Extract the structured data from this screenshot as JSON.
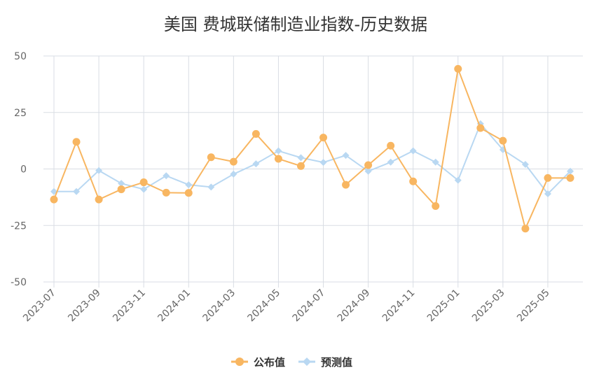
{
  "colors": {
    "actual": "#f8b661",
    "forecast": "#b9d8f2",
    "grid": "#d9dde4"
  },
  "chart_data": {
    "type": "line",
    "title": "美国 费城联储制造业指数-历史数据",
    "x": [
      "2023-07",
      "2023-08",
      "2023-09",
      "2023-10",
      "2023-11",
      "2023-12",
      "2024-01",
      "2024-02",
      "2024-03",
      "2024-04",
      "2024-05",
      "2024-06",
      "2024-07",
      "2024-08",
      "2024-09",
      "2024-10",
      "2024-11",
      "2024-12",
      "2025-01",
      "2025-02",
      "2025-03",
      "2025-04",
      "2025-05",
      "2025-06"
    ],
    "x_tick_labels": [
      "2023-07",
      "2023-09",
      "2023-11",
      "2024-01",
      "2024-03",
      "2024-05",
      "2024-07",
      "2024-09",
      "2024-11",
      "2025-01",
      "2025-03",
      "2025-05"
    ],
    "y_tick_labels": [
      "50",
      "25",
      "0",
      "-25",
      "-50"
    ],
    "ylim": [
      -50,
      50
    ],
    "grid": true,
    "legend_position": "bottom-center",
    "series": [
      {
        "name": "公布值",
        "marker": "circle",
        "values": [
          -13.5,
          12.0,
          -13.5,
          -9.0,
          -5.9,
          -10.5,
          -10.6,
          5.2,
          3.2,
          15.5,
          4.5,
          1.3,
          13.9,
          -7.0,
          1.7,
          10.3,
          -5.5,
          -16.4,
          44.3,
          18.1,
          12.5,
          -26.4,
          -4.0,
          -4.0
        ]
      },
      {
        "name": "预测值",
        "marker": "diamond",
        "values": [
          -10.0,
          -10.0,
          -0.7,
          -6.4,
          -9.0,
          -3.0,
          -7.0,
          -8.0,
          -2.3,
          2.3,
          8.0,
          5.0,
          2.9,
          6.0,
          -1.0,
          3.0,
          8.0,
          3.0,
          -5.0,
          20.0,
          8.5,
          2.0,
          -11.0,
          -1.0
        ]
      }
    ]
  }
}
